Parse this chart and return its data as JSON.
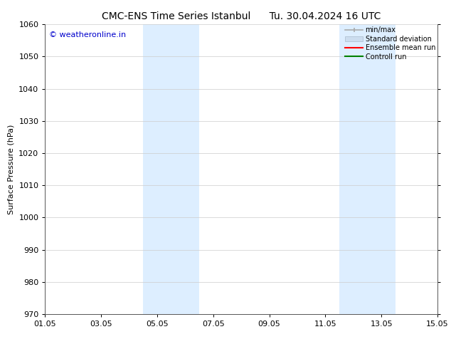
{
  "title_left": "CMC-ENS Time Series Istanbul",
  "title_right": "Tu. 30.04.2024 16 UTC",
  "ylabel": "Surface Pressure (hPa)",
  "ylim": [
    970,
    1060
  ],
  "yticks": [
    970,
    980,
    990,
    1000,
    1010,
    1020,
    1030,
    1040,
    1050,
    1060
  ],
  "xtick_labels": [
    "01.05",
    "03.05",
    "05.05",
    "07.05",
    "09.05",
    "11.05",
    "13.05",
    "15.05"
  ],
  "xtick_positions": [
    0,
    2,
    4,
    6,
    8,
    10,
    12,
    14
  ],
  "xmin": 0,
  "xmax": 14,
  "shaded_regions": [
    {
      "start": 3.5,
      "end": 5.5
    },
    {
      "start": 10.5,
      "end": 12.5
    }
  ],
  "shaded_color": "#ddeeff",
  "background_color": "#ffffff",
  "watermark_text": "© weatheronline.in",
  "watermark_color": "#0000cc",
  "watermark_fontsize": 8,
  "title_fontsize": 10,
  "ylabel_fontsize": 8,
  "tick_fontsize": 8,
  "legend_items": [
    {
      "label": "min/max",
      "color": "#aaaaaa"
    },
    {
      "label": "Standard deviation",
      "color": "#ccddef"
    },
    {
      "label": "Ensemble mean run",
      "color": "#ff0000"
    },
    {
      "label": "Controll run",
      "color": "#008000"
    }
  ]
}
